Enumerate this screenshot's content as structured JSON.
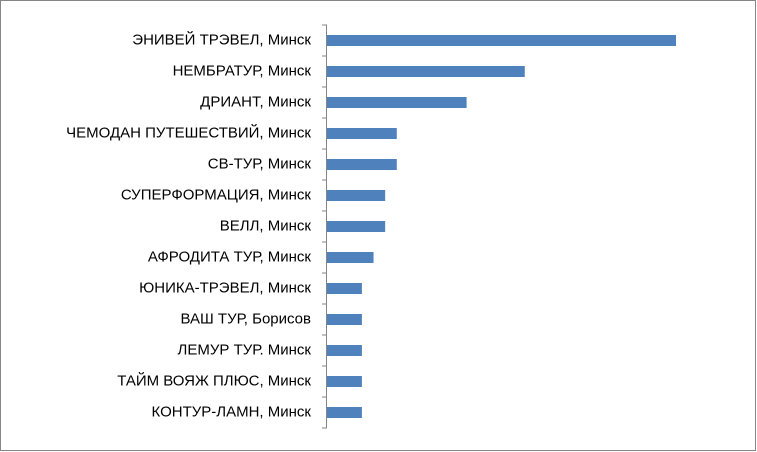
{
  "chart_data": {
    "type": "bar",
    "orientation": "horizontal",
    "categories": [
      "ЭНИВЕЙ ТРЭВЕЛ, Минск",
      "НЕМБРАТУР, Минск",
      "ДРИАНТ, Минск",
      "ЧЕМОДАН ПУТЕШЕСТВИЙ, Минск",
      "СВ-ТУР, Минск",
      "СУПЕРФОРМАЦИЯ, Минск",
      "ВЕЛЛ, Минск",
      "АФРОДИТА ТУР, Минск",
      "ЮНИКА-ТРЭВЕЛ, Минск",
      "ВАШ ТУР, Борисов",
      "ЛЕМУР ТУР. Минск",
      "ТАЙМ ВОЯЖ ПЛЮС, Минск",
      "КОНТУР-ЛАМН, Минск"
    ],
    "values": [
      30,
      17,
      12,
      6,
      6,
      5,
      5,
      4,
      3,
      3,
      3,
      3,
      3
    ],
    "color": "#4f81bd"
  }
}
